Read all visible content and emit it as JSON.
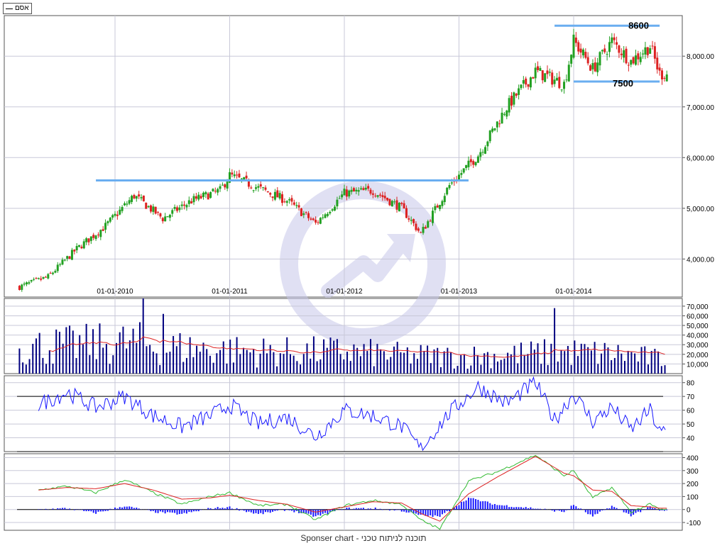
{
  "legend": {
    "label": "אסם",
    "swatch_color": "#000000"
  },
  "footer": {
    "text": "Sponser chart - תוכנה לניתוח טכני"
  },
  "colors": {
    "up": "#22a022",
    "down": "#dd2222",
    "support": "#6aaef0",
    "volume": "#000080",
    "volume_ma": "#dd2222",
    "oscillator": "#1a1aff",
    "macd_hist": "#1a1aff",
    "macd_fast": "#33bb33",
    "macd_signal": "#dd2222",
    "grid": "#c8c8d8",
    "watermark": "#c8c8ea"
  },
  "chart_data": [
    {
      "type": "candlestick",
      "name": "price",
      "x_ticks": [
        "01-01-2010",
        "01-01-2011",
        "01-01-2012",
        "01-01-2013",
        "01-01-2014"
      ],
      "y_ticks": [
        "4,000.00",
        "5,000.00",
        "6,000.00",
        "7,000.00",
        "8,000.00"
      ],
      "y_tick_values": [
        4000,
        5000,
        6000,
        7000,
        8000
      ],
      "ylim": [
        3250,
        8800
      ],
      "x_range": [
        "2009-03",
        "2014-10"
      ],
      "grid": true,
      "approx_close_path": [
        [
          "2009-03",
          3450
        ],
        [
          "2009-06",
          3650
        ],
        [
          "2009-09",
          4200
        ],
        [
          "2009-12",
          4650
        ],
        [
          "2010-03",
          5250
        ],
        [
          "2010-06",
          4800
        ],
        [
          "2010-09",
          5150
        ],
        [
          "2010-12",
          5350
        ],
        [
          "2011-01",
          5650
        ],
        [
          "2011-04",
          5400
        ],
        [
          "2011-07",
          5150
        ],
        [
          "2011-10",
          4700
        ],
        [
          "2012-01",
          5300
        ],
        [
          "2012-04",
          5350
        ],
        [
          "2012-07",
          5000
        ],
        [
          "2012-09",
          4500
        ],
        [
          "2012-12",
          5450
        ],
        [
          "2013-03",
          6050
        ],
        [
          "2013-06",
          7000
        ],
        [
          "2013-09",
          7700
        ],
        [
          "2013-12",
          7450
        ],
        [
          "2014-01",
          8300
        ],
        [
          "2014-03",
          7750
        ],
        [
          "2014-05",
          8300
        ],
        [
          "2014-07",
          7900
        ],
        [
          "2014-09",
          8200
        ],
        [
          "2014-10",
          7650
        ]
      ],
      "annotations": [
        {
          "type": "hline",
          "y": 5550,
          "x_from": "2009-11",
          "x_to": "2013-02",
          "color": "#6aaef0"
        },
        {
          "type": "hline",
          "y": 8600,
          "x_from": "2013-11",
          "x_to": "2014-10",
          "color": "#6aaef0",
          "label": "8600"
        },
        {
          "type": "hline",
          "y": 7500,
          "x_from": "2014-01",
          "x_to": "2014-10",
          "color": "#6aaef0",
          "label": "7500"
        }
      ]
    },
    {
      "type": "bar",
      "name": "volume",
      "y_ticks": [
        "10,000",
        "20,000",
        "30,000",
        "40,000",
        "50,000",
        "60,000",
        "70,000"
      ],
      "y_tick_values": [
        10000,
        20000,
        30000,
        40000,
        50000,
        60000,
        70000
      ],
      "ylim": [
        0,
        78000
      ],
      "approx_level_path": [
        [
          "2009-03",
          30000
        ],
        [
          "2009-09",
          32000
        ],
        [
          "2010-03",
          35000
        ],
        [
          "2010-06",
          30000
        ],
        [
          "2011-01",
          26000
        ],
        [
          "2011-06",
          24000
        ],
        [
          "2012-01",
          25000
        ],
        [
          "2012-06",
          21000
        ],
        [
          "2013-01",
          19000
        ],
        [
          "2013-06",
          21000
        ],
        [
          "2013-12",
          24000
        ],
        [
          "2014-06",
          22000
        ],
        [
          "2014-10",
          16000
        ]
      ],
      "spikes": [
        [
          "2010-04",
          78000
        ],
        [
          "2010-06",
          62000
        ],
        [
          "2013-11",
          68000
        ]
      ],
      "moving_average": {
        "color": "#dd2222"
      }
    },
    {
      "type": "line",
      "name": "oscillator",
      "y_ticks": [
        "40",
        "50",
        "60",
        "70",
        "80"
      ],
      "y_tick_values": [
        40,
        50,
        60,
        70,
        80
      ],
      "ylim": [
        30,
        85
      ],
      "reference_lines": [
        70,
        30
      ],
      "approx_path": [
        [
          "2009-05",
          64
        ],
        [
          "2009-08",
          73
        ],
        [
          "2009-11",
          62
        ],
        [
          "2010-02",
          70
        ],
        [
          "2010-05",
          56
        ],
        [
          "2010-08",
          48
        ],
        [
          "2010-11",
          56
        ],
        [
          "2011-01",
          64
        ],
        [
          "2011-04",
          50
        ],
        [
          "2011-07",
          55
        ],
        [
          "2011-10",
          41
        ],
        [
          "2012-01",
          60
        ],
        [
          "2012-04",
          56
        ],
        [
          "2012-07",
          48
        ],
        [
          "2012-09",
          32
        ],
        [
          "2012-12",
          58
        ],
        [
          "2013-03",
          77
        ],
        [
          "2013-06",
          65
        ],
        [
          "2013-09",
          80
        ],
        [
          "2013-11",
          53
        ],
        [
          "2014-01",
          72
        ],
        [
          "2014-03",
          52
        ],
        [
          "2014-05",
          62
        ],
        [
          "2014-07",
          46
        ],
        [
          "2014-09",
          60
        ],
        [
          "2014-10",
          44
        ]
      ]
    },
    {
      "type": "line",
      "name": "macd",
      "y_ticks": [
        "-100",
        "0",
        "100",
        "200",
        "300",
        "400"
      ],
      "y_tick_values": [
        -100,
        0,
        100,
        200,
        300,
        400
      ],
      "ylim": [
        -160,
        430
      ],
      "zero_line": true,
      "fast_path": [
        [
          "2009-05",
          150
        ],
        [
          "2009-08",
          180
        ],
        [
          "2009-11",
          130
        ],
        [
          "2010-02",
          230
        ],
        [
          "2010-05",
          130
        ],
        [
          "2010-08",
          40
        ],
        [
          "2010-11",
          100
        ],
        [
          "2011-01",
          130
        ],
        [
          "2011-04",
          30
        ],
        [
          "2011-07",
          40
        ],
        [
          "2011-10",
          -80
        ],
        [
          "2012-01",
          30
        ],
        [
          "2012-04",
          70
        ],
        [
          "2012-07",
          40
        ],
        [
          "2012-09",
          -80
        ],
        [
          "2012-11",
          -150
        ],
        [
          "2013-02",
          220
        ],
        [
          "2013-05",
          290
        ],
        [
          "2013-09",
          420
        ],
        [
          "2013-12",
          260
        ],
        [
          "2014-01",
          300
        ],
        [
          "2014-03",
          90
        ],
        [
          "2014-05",
          170
        ],
        [
          "2014-07",
          -20
        ],
        [
          "2014-09",
          40
        ],
        [
          "2014-10",
          0
        ]
      ],
      "signal_path": [
        [
          "2009-05",
          150
        ],
        [
          "2009-08",
          170
        ],
        [
          "2009-11",
          160
        ],
        [
          "2010-02",
          200
        ],
        [
          "2010-05",
          150
        ],
        [
          "2010-08",
          80
        ],
        [
          "2010-11",
          90
        ],
        [
          "2011-01",
          110
        ],
        [
          "2011-04",
          70
        ],
        [
          "2011-07",
          40
        ],
        [
          "2011-10",
          -20
        ],
        [
          "2012-01",
          20
        ],
        [
          "2012-04",
          60
        ],
        [
          "2012-07",
          50
        ],
        [
          "2012-09",
          -30
        ],
        [
          "2012-11",
          -90
        ],
        [
          "2013-02",
          120
        ],
        [
          "2013-05",
          250
        ],
        [
          "2013-09",
          410
        ],
        [
          "2013-12",
          280
        ],
        [
          "2014-01",
          260
        ],
        [
          "2014-03",
          150
        ],
        [
          "2014-05",
          140
        ],
        [
          "2014-07",
          30
        ],
        [
          "2014-09",
          20
        ],
        [
          "2014-10",
          10
        ]
      ],
      "histogram": {
        "color": "#1a1aff"
      }
    }
  ]
}
